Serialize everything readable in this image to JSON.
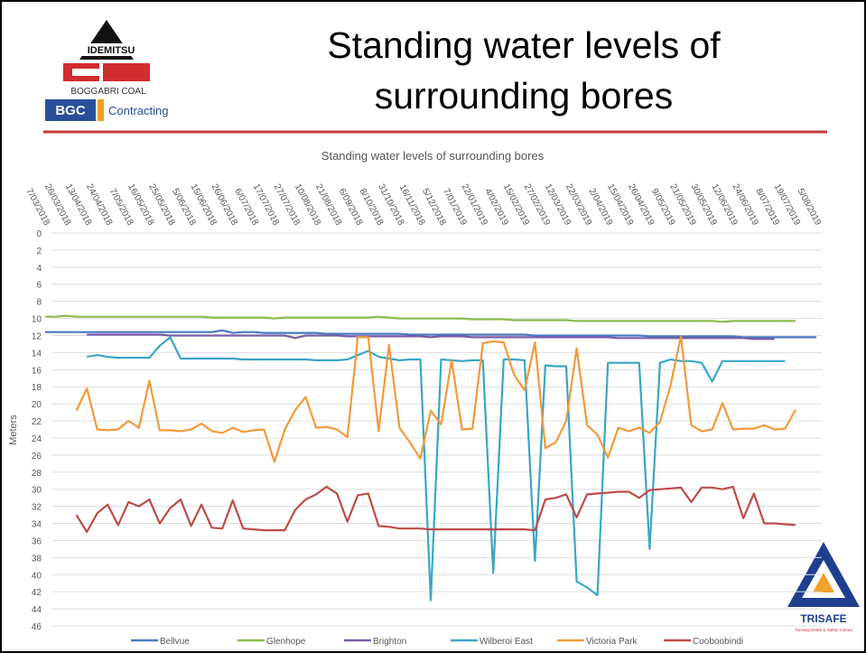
{
  "slide": {
    "title": "Standing water levels of surrounding bores",
    "logo": {
      "brand": "IDEMITSU",
      "company": "BOGGABRI COAL",
      "division": "BGC",
      "division_text": "Contracting"
    },
    "badge": {
      "name": "TRISAFE",
      "tagline": "Thriving Health & Safety Culture"
    }
  },
  "chart_data": {
    "type": "line",
    "title": "Standing water levels of surrounding bores",
    "y_label": "Meters",
    "y_reversed": true,
    "grid": true,
    "legend": "bottom",
    "ylim": [
      0,
      46
    ],
    "yticks": [
      0,
      2,
      4,
      6,
      8,
      10,
      12,
      14,
      16,
      18,
      20,
      22,
      24,
      26,
      28,
      30,
      32,
      34,
      36,
      38,
      40,
      42,
      44,
      46
    ],
    "categories": [
      "7/03/2018",
      null,
      "26/03/2018",
      null,
      "13/04/2018",
      null,
      "24/04/2018",
      null,
      "7/05/2018",
      null,
      "16/05/2018",
      null,
      "25/05/2018",
      null,
      "5/06/2018",
      null,
      "15/06/2018",
      null,
      "26/06/2018",
      null,
      "6/07/2018",
      null,
      "17/07/2018",
      null,
      "27/07/2018",
      null,
      "10/08/2018",
      null,
      "21/08/2018",
      null,
      "6/09/2018",
      null,
      "8/10/2018",
      null,
      "31/10/2018",
      null,
      "16/11/2018",
      null,
      "5/12/2018",
      null,
      "7/01/2019",
      null,
      "22/01/2019",
      null,
      "4/02/2019",
      null,
      "15/02/2019",
      null,
      "27/02/2019",
      null,
      "12/03/2019",
      null,
      "22/03/2019",
      null,
      "2/04/2019",
      null,
      "15/04/2019",
      null,
      "26/04/2019",
      null,
      "9/05/2019",
      null,
      "21/05/2019",
      null,
      "30/05/2019",
      null,
      "12/06/2019",
      null,
      "24/06/2019",
      null,
      "8/07/2019",
      null,
      "19/07/2019",
      null,
      "5/08/2019"
    ],
    "series": [
      {
        "name": "Bellvue",
        "color": "#4a78c0",
        "values": [
          11.6,
          11.6,
          11.6,
          11.6,
          11.6,
          11.6,
          11.6,
          11.6,
          11.6,
          11.6,
          11.6,
          11.6,
          11.6,
          11.6,
          11.6,
          11.6,
          11.6,
          11.4,
          11.7,
          11.6,
          11.6,
          11.7,
          11.7,
          11.7,
          11.7,
          11.7,
          11.7,
          11.8,
          11.8,
          11.8,
          11.8,
          11.8,
          11.8,
          11.8,
          11.8,
          11.9,
          11.9,
          11.9,
          11.9,
          11.9,
          11.9,
          11.9,
          11.9,
          11.9,
          11.9,
          11.9,
          11.9,
          12.0,
          12.0,
          12.0,
          12.0,
          12.0,
          12.0,
          12.0,
          12.0,
          12.0,
          12.0,
          12.0,
          12.1,
          12.1,
          12.1,
          12.1,
          12.1,
          12.1,
          12.1,
          12.1,
          12.1,
          12.2,
          12.2,
          12.2,
          12.2,
          12.2,
          12.2,
          12.2,
          12.2
        ]
      },
      {
        "name": "Glenhope",
        "color": "#8dbb4f",
        "values": [
          9.8,
          9.8,
          9.7,
          9.8,
          9.8,
          9.8,
          9.8,
          9.8,
          9.8,
          9.8,
          9.8,
          9.8,
          9.8,
          9.8,
          9.8,
          9.8,
          9.9,
          9.9,
          9.9,
          9.9,
          9.9,
          9.9,
          10.0,
          9.9,
          9.9,
          9.9,
          9.9,
          9.9,
          9.9,
          9.9,
          9.9,
          9.9,
          9.8,
          9.9,
          10.0,
          10.0,
          10.0,
          10.0,
          10.0,
          10.0,
          10.0,
          10.1,
          10.1,
          10.1,
          10.1,
          10.2,
          10.2,
          10.2,
          10.2,
          10.2,
          10.2,
          10.3,
          10.3,
          10.3,
          10.3,
          10.3,
          10.3,
          10.3,
          10.3,
          10.3,
          10.3,
          10.3,
          10.3,
          10.3,
          10.3,
          10.4,
          10.3,
          10.3,
          10.3,
          10.3,
          10.3,
          10.3,
          10.3,
          null,
          null
        ]
      },
      {
        "name": "Brighton",
        "color": "#7a5ca8",
        "values": [
          null,
          null,
          null,
          null,
          11.9,
          11.9,
          11.9,
          11.9,
          11.9,
          11.9,
          11.9,
          11.9,
          12.0,
          12.0,
          12.0,
          12.0,
          12.0,
          12.0,
          12.0,
          12.0,
          12.0,
          12.0,
          12.0,
          12.0,
          12.3,
          12.0,
          12.0,
          12.0,
          12.0,
          12.1,
          12.1,
          12.1,
          12.1,
          12.1,
          12.1,
          12.1,
          12.1,
          12.2,
          12.1,
          12.1,
          12.1,
          12.2,
          12.2,
          12.2,
          12.2,
          12.2,
          12.2,
          12.2,
          12.2,
          12.2,
          12.2,
          12.2,
          12.2,
          12.2,
          12.2,
          12.3,
          12.3,
          12.3,
          12.3,
          12.3,
          12.3,
          12.3,
          12.3,
          12.3,
          12.3,
          12.3,
          12.3,
          12.3,
          12.4,
          12.4,
          12.4,
          null,
          null,
          null,
          null
        ]
      },
      {
        "name": "Wilberoi East",
        "color": "#3aa6c6",
        "values": [
          null,
          null,
          null,
          null,
          14.5,
          14.3,
          14.5,
          14.6,
          14.6,
          14.6,
          14.6,
          13.2,
          12.2,
          14.7,
          14.7,
          14.7,
          14.7,
          14.7,
          14.7,
          14.8,
          14.8,
          14.8,
          14.8,
          14.8,
          14.8,
          14.8,
          14.9,
          14.9,
          14.9,
          14.8,
          14.3,
          13.8,
          14.5,
          14.7,
          14.9,
          14.8,
          14.8,
          43,
          14.8,
          14.9,
          15.0,
          14.9,
          14.9,
          39.8,
          14.8,
          14.8,
          14.9,
          38.4,
          15.5,
          15.6,
          15.6,
          40.8,
          41.5,
          42.4,
          15.2,
          15.2,
          15.2,
          15.2,
          37,
          15.2,
          14.8,
          15.0,
          15.0,
          15.2,
          17.4,
          15.0,
          15.0,
          15.0,
          15.0,
          15.0,
          15.0,
          15.0,
          null,
          null,
          null
        ]
      },
      {
        "name": "Victoria Park",
        "color": "#f3993b",
        "values": [
          null,
          null,
          null,
          20.8,
          18.2,
          23.0,
          23.1,
          23.0,
          22.0,
          22.8,
          17.3,
          23.1,
          23.1,
          23.2,
          23.0,
          22.3,
          23.2,
          23.4,
          22.8,
          23.3,
          23.1,
          23.0,
          26.8,
          23.0,
          20.7,
          19.2,
          22.8,
          22.7,
          23.0,
          23.9,
          12.2,
          12.2,
          23.2,
          13.1,
          22.8,
          24.5,
          26.4,
          20.8,
          22.4,
          14.9,
          23.0,
          22.9,
          12.9,
          12.7,
          12.8,
          16.6,
          18.4,
          12.8,
          25.2,
          24.5,
          22.0,
          13.5,
          22.5,
          23.6,
          26.3,
          22.8,
          23.2,
          22.8,
          23.4,
          22.1,
          17.9,
          12.1,
          22.5,
          23.2,
          23.0,
          19.9,
          23.0,
          22.9,
          22.9,
          22.5,
          23.0,
          22.9,
          20.7,
          null,
          null
        ]
      },
      {
        "name": "Cooboobindi",
        "color": "#be4b48",
        "values": [
          null,
          null,
          null,
          33.0,
          35.0,
          32.8,
          31.8,
          34.2,
          31.5,
          32.0,
          31.2,
          34.0,
          32.2,
          31.2,
          34.3,
          31.8,
          34.5,
          34.6,
          31.3,
          34.6,
          34.7,
          34.8,
          34.8,
          34.8,
          32.4,
          31.2,
          30.6,
          29.7,
          30.5,
          33.8,
          30.7,
          30.5,
          34.3,
          34.4,
          34.6,
          34.6,
          34.6,
          34.7,
          34.7,
          34.7,
          34.7,
          34.7,
          34.7,
          34.7,
          34.7,
          34.7,
          34.7,
          34.8,
          31.2,
          31.0,
          30.6,
          33.3,
          30.6,
          30.5,
          30.4,
          30.3,
          30.3,
          31.0,
          30.1,
          30.0,
          29.9,
          29.8,
          31.5,
          29.8,
          29.8,
          30.0,
          29.7,
          33.4,
          30.5,
          34.0,
          34.0,
          34.1,
          34.2,
          null,
          null
        ]
      }
    ]
  }
}
